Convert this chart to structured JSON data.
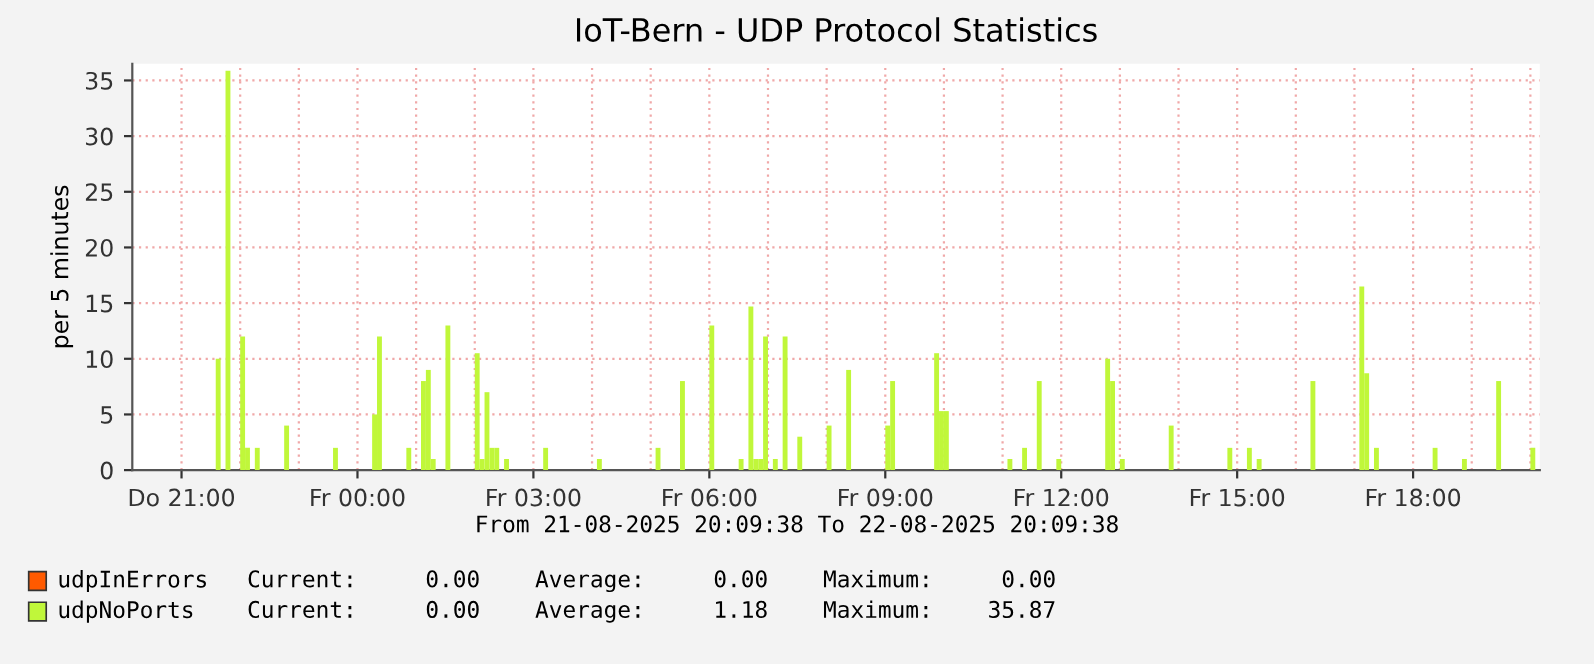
{
  "chart_data": {
    "type": "bar",
    "title": "IoT-Bern - UDP Protocol Statistics",
    "ylabel": "per 5 minutes",
    "series": [
      {
        "name": "udpInErrors",
        "color": "#ff5a00"
      },
      {
        "name": "udpNoPorts",
        "color": "#c0f73a",
        "x": [
          "2025-08-21T21:35",
          "2025-08-21T21:45",
          "2025-08-21T22:00",
          "2025-08-21T22:05",
          "2025-08-21T22:15",
          "2025-08-21T22:45",
          "2025-08-21T23:35",
          "2025-08-22T00:15",
          "2025-08-22T00:20",
          "2025-08-22T00:50",
          "2025-08-22T01:05",
          "2025-08-22T01:10",
          "2025-08-22T01:15",
          "2025-08-22T01:30",
          "2025-08-22T02:00",
          "2025-08-22T02:05",
          "2025-08-22T02:10",
          "2025-08-22T02:15",
          "2025-08-22T02:20",
          "2025-08-22T02:30",
          "2025-08-22T03:10",
          "2025-08-22T04:05",
          "2025-08-22T05:05",
          "2025-08-22T05:30",
          "2025-08-22T06:00",
          "2025-08-22T06:30",
          "2025-08-22T06:40",
          "2025-08-22T06:45",
          "2025-08-22T06:50",
          "2025-08-22T06:55",
          "2025-08-22T07:05",
          "2025-08-22T07:15",
          "2025-08-22T07:30",
          "2025-08-22T08:00",
          "2025-08-22T08:20",
          "2025-08-22T09:00",
          "2025-08-22T09:05",
          "2025-08-22T09:50",
          "2025-08-22T09:55",
          "2025-08-22T10:00",
          "2025-08-22T11:05",
          "2025-08-22T11:20",
          "2025-08-22T11:35",
          "2025-08-22T11:55",
          "2025-08-22T12:45",
          "2025-08-22T12:50",
          "2025-08-22T13:00",
          "2025-08-22T13:50",
          "2025-08-22T14:50",
          "2025-08-22T15:10",
          "2025-08-22T15:20",
          "2025-08-22T16:15",
          "2025-08-22T17:05",
          "2025-08-22T17:10",
          "2025-08-22T17:20",
          "2025-08-22T18:20",
          "2025-08-22T18:50",
          "2025-08-22T19:25",
          "2025-08-22T20:00"
        ],
        "values": [
          10,
          35.87,
          12,
          2,
          2,
          4,
          2,
          5,
          12,
          2,
          8,
          9,
          1,
          13,
          10.5,
          1,
          7,
          2,
          2,
          1,
          2,
          1,
          2,
          8,
          13,
          1,
          14.7,
          1,
          1,
          12,
          1,
          12,
          3,
          4,
          9,
          4,
          8,
          10.5,
          5.3,
          5.3,
          1,
          2,
          8,
          1,
          10,
          8,
          1,
          4,
          2,
          2,
          1,
          8,
          16.5,
          8.7,
          2,
          2,
          1,
          8,
          2
        ]
      }
    ],
    "xlim": [
      "2025-08-21T20:09:38",
      "2025-08-22T20:09:38"
    ],
    "xticks": [
      {
        "value": "2025-08-21T21:00",
        "label": "Do 21:00"
      },
      {
        "value": "2025-08-21T22:00",
        "label": null
      },
      {
        "value": "2025-08-21T23:00",
        "label": null
      },
      {
        "value": "2025-08-22T00:00",
        "label": "Fr 00:00"
      },
      {
        "value": "2025-08-22T01:00",
        "label": null
      },
      {
        "value": "2025-08-22T02:00",
        "label": null
      },
      {
        "value": "2025-08-22T03:00",
        "label": "Fr 03:00"
      },
      {
        "value": "2025-08-22T04:00",
        "label": null
      },
      {
        "value": "2025-08-22T05:00",
        "label": null
      },
      {
        "value": "2025-08-22T06:00",
        "label": "Fr 06:00"
      },
      {
        "value": "2025-08-22T07:00",
        "label": null
      },
      {
        "value": "2025-08-22T08:00",
        "label": null
      },
      {
        "value": "2025-08-22T09:00",
        "label": "Fr 09:00"
      },
      {
        "value": "2025-08-22T10:00",
        "label": null
      },
      {
        "value": "2025-08-22T11:00",
        "label": null
      },
      {
        "value": "2025-08-22T12:00",
        "label": "Fr 12:00"
      },
      {
        "value": "2025-08-22T13:00",
        "label": null
      },
      {
        "value": "2025-08-22T14:00",
        "label": null
      },
      {
        "value": "2025-08-22T15:00",
        "label": "Fr 15:00"
      },
      {
        "value": "2025-08-22T16:00",
        "label": null
      },
      {
        "value": "2025-08-22T17:00",
        "label": null
      },
      {
        "value": "2025-08-22T18:00",
        "label": "Fr 18:00"
      },
      {
        "value": "2025-08-22T19:00",
        "label": null
      },
      {
        "value": "2025-08-22T20:00",
        "label": null
      }
    ],
    "ylim": [
      0,
      36.5
    ],
    "yticks": [
      0,
      5,
      10,
      15,
      20,
      25,
      30,
      35
    ],
    "grid": true,
    "legend": "bottom left",
    "annotations": [
      "From 21-08-2025 20:09:38 To 22-08-2025 20:09:38",
      "Current:     0.00    Average:     0.00    Maximum:     0.00",
      "Current:     0.00    Average:     1.18    Maximum:    35.87"
    ]
  }
}
